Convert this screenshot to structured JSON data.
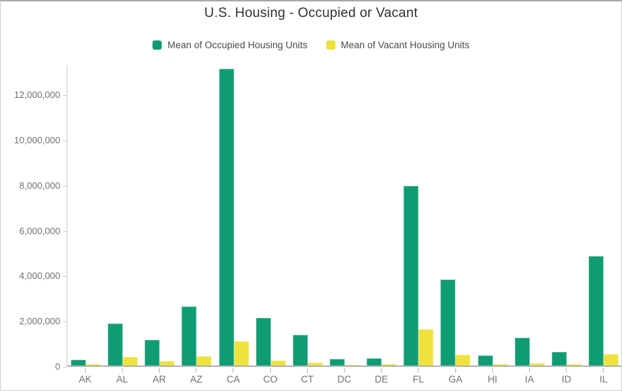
{
  "title": "U.S. Housing - Occupied or Vacant",
  "legend": [
    {
      "label": "Mean of Occupied Housing Units",
      "color": "#0f9c73"
    },
    {
      "label": "Mean of Vacant Housing Units",
      "color": "#efe23c"
    }
  ],
  "chart_data": {
    "type": "bar",
    "title": "U.S. Housing - Occupied or Vacant",
    "xlabel": "",
    "ylabel": "",
    "grid": false,
    "legend_position": "top",
    "categories": [
      "AK",
      "AL",
      "AR",
      "AZ",
      "CA",
      "CO",
      "CT",
      "DC",
      "DE",
      "FL",
      "GA",
      "HI",
      "IA",
      "ID",
      "IL"
    ],
    "series": [
      {
        "name": "Mean of Occupied Housing Units",
        "color": "#0f9c73",
        "values": [
          240000,
          1850000,
          1130000,
          2600000,
          13100000,
          2100000,
          1360000,
          270000,
          330000,
          7930000,
          3790000,
          430000,
          1230000,
          610000,
          4840000
        ]
      },
      {
        "name": "Mean of Vacant Housing Units",
        "color": "#efe23c",
        "values": [
          75000,
          390000,
          195000,
          400000,
          1070000,
          220000,
          130000,
          35000,
          60000,
          1590000,
          460000,
          60000,
          110000,
          60000,
          490000
        ]
      }
    ],
    "ylim": [
      0,
      13300000
    ],
    "yticks": [
      0,
      2000000,
      4000000,
      6000000,
      8000000,
      10000000,
      12000000
    ],
    "ytick_labels": [
      "0",
      "2,000,000",
      "4,000,000",
      "6,000,000",
      "8,000,000",
      "10,000,000",
      "12,000,000"
    ]
  }
}
